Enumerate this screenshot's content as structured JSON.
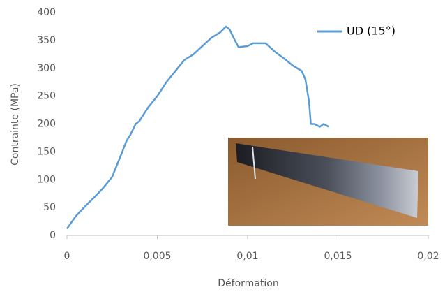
{
  "chart_data": {
    "type": "line",
    "x_label": "Déformation",
    "y_label": "Contrainte (MPa)",
    "x": [
      0,
      0.0005,
      0.001,
      0.0015,
      0.002,
      0.0025,
      0.003,
      0.0033,
      0.0035,
      0.0038,
      0.004,
      0.0043,
      0.0045,
      0.005,
      0.0055,
      0.006,
      0.0065,
      0.007,
      0.0075,
      0.008,
      0.0085,
      0.0088,
      0.009,
      0.0093,
      0.0095,
      0.01,
      0.0103,
      0.0108,
      0.011,
      0.0115,
      0.012,
      0.0125,
      0.013,
      0.0132,
      0.0134,
      0.0135,
      0.0137,
      0.014,
      0.0142,
      0.0145
    ],
    "series": [
      {
        "name": "UD (15°)",
        "color": "#5b9bd5",
        "values": [
          12,
          35,
          52,
          68,
          85,
          105,
          145,
          170,
          180,
          200,
          205,
          220,
          230,
          250,
          275,
          295,
          315,
          325,
          340,
          355,
          365,
          375,
          370,
          350,
          338,
          340,
          345,
          345,
          345,
          330,
          318,
          305,
          295,
          280,
          240,
          200,
          200,
          195,
          200,
          195
        ]
      }
    ],
    "xlim": [
      0,
      0.02
    ],
    "xticks": [
      0,
      {
        "value": 0.005,
        "label": "0,005"
      },
      {
        "value": 0.01,
        "label": "0,01"
      },
      {
        "value": 0.015,
        "label": "0,015"
      },
      {
        "value": 0.02,
        "label": "0,02"
      }
    ],
    "ylim": [
      0,
      400
    ],
    "yticks": [
      0,
      50,
      100,
      150,
      200,
      250,
      300,
      350,
      400
    ],
    "grid": false,
    "legend": "top-right"
  }
}
